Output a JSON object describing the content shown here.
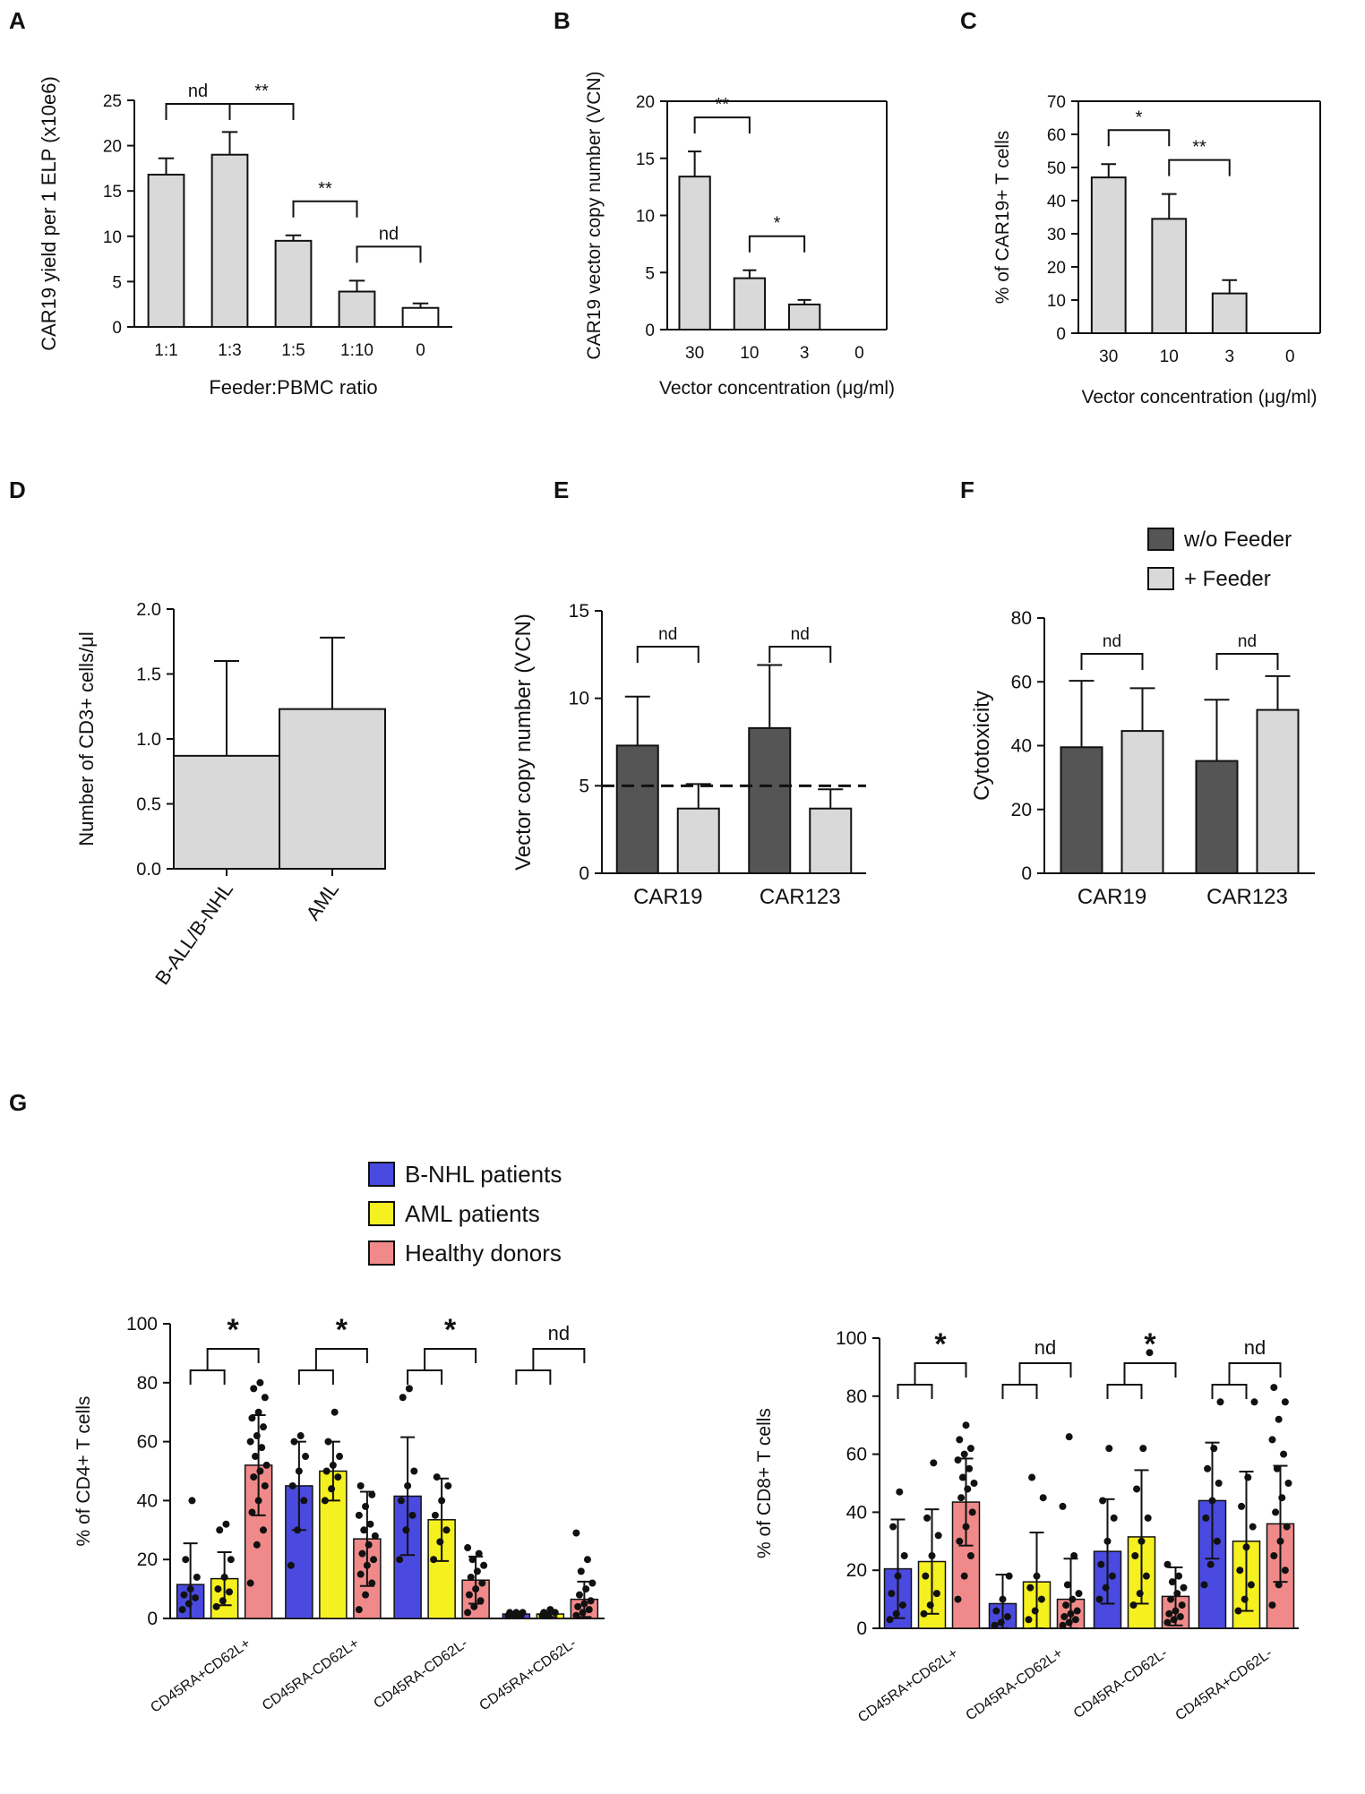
{
  "figure": {
    "panel_labels": [
      "A",
      "B",
      "C",
      "D",
      "E",
      "F",
      "G"
    ]
  },
  "colors": {
    "light_bar": "#d9d9d9",
    "dark_bar": "#555555",
    "bnhl": "#4a4ae0",
    "aml": "#f5f020",
    "healthy": "#f08a8a",
    "axis": "#111111",
    "white_bar": "#ffffff"
  },
  "chart_data": [
    {
      "id": "A",
      "type": "bar",
      "title": "",
      "xlabel": "Feeder:PBMC ratio",
      "ylabel": "CAR19 yield per 1 ELP (x10e6)",
      "ylim": [
        0,
        25
      ],
      "yticks": [
        0,
        5,
        10,
        15,
        20,
        25
      ],
      "categories": [
        "1:1",
        "1:3",
        "1:5",
        "1:10",
        "0"
      ],
      "values": [
        16.8,
        19.0,
        9.5,
        3.9,
        2.1
      ],
      "errors": [
        1.8,
        2.5,
        0.6,
        1.2,
        0.5
      ],
      "bar_colors": [
        "light",
        "light",
        "light",
        "light",
        "white"
      ],
      "significance": [
        {
          "from": 0,
          "to": 1,
          "label": "nd"
        },
        {
          "from": 1,
          "to": 2,
          "label": "**"
        },
        {
          "from": 2,
          "to": 3,
          "label": "**"
        },
        {
          "from": 3,
          "to": 4,
          "label": "nd"
        }
      ]
    },
    {
      "id": "B",
      "type": "bar",
      "title": "",
      "xlabel": "Vector concentration (μg/ml)",
      "ylabel": "CAR19 vector copy number (VCN)",
      "ylim": [
        0,
        20
      ],
      "yticks": [
        0,
        5,
        10,
        15,
        20
      ],
      "categories": [
        "30",
        "10",
        "3",
        "0"
      ],
      "values": [
        13.4,
        4.5,
        2.2,
        0
      ],
      "errors": [
        2.2,
        0.7,
        0.4,
        0
      ],
      "significance": [
        {
          "from": 0,
          "to": 1,
          "label": "**"
        },
        {
          "from": 1,
          "to": 2,
          "label": "*"
        }
      ]
    },
    {
      "id": "C",
      "type": "bar",
      "title": "",
      "xlabel": "Vector concentration (μg/ml)",
      "ylabel": "% of CAR19+ T cells",
      "ylim": [
        0,
        70
      ],
      "yticks": [
        0,
        10,
        20,
        30,
        40,
        50,
        60,
        70
      ],
      "categories": [
        "30",
        "10",
        "3",
        "0"
      ],
      "values": [
        47,
        34.5,
        12,
        0
      ],
      "errors": [
        4,
        7.5,
        4,
        0
      ],
      "significance": [
        {
          "from": 0,
          "to": 1,
          "label": "*"
        },
        {
          "from": 1,
          "to": 2,
          "label": "**"
        }
      ]
    },
    {
      "id": "D",
      "type": "bar",
      "title": "",
      "xlabel": "",
      "ylabel": "Number of CD3+ cells/μl",
      "ylim": [
        0,
        2.0
      ],
      "yticks": [
        "0.0",
        "0.5",
        "1.0",
        "1.5",
        "2.0"
      ],
      "categories": [
        "B-ALL/B-NHL",
        "AML"
      ],
      "values": [
        0.87,
        1.23
      ],
      "errors": [
        0.73,
        0.55
      ]
    },
    {
      "id": "E",
      "type": "bar",
      "title": "",
      "xlabel": "",
      "ylabel": "Vector copy number (VCN)",
      "ylim": [
        0,
        15
      ],
      "yticks": [
        0,
        5,
        10,
        15
      ],
      "categories": [
        "CAR19",
        "CAR123"
      ],
      "series": [
        {
          "name": "w/o Feeder",
          "values": [
            7.3,
            8.3
          ],
          "errors": [
            2.8,
            3.6
          ]
        },
        {
          "name": "+ Feeder",
          "values": [
            3.7,
            3.7
          ],
          "errors": [
            1.4,
            1.1
          ]
        }
      ],
      "reference_line": 5,
      "significance": [
        {
          "group": 0,
          "label": "nd"
        },
        {
          "group": 1,
          "label": "nd"
        }
      ]
    },
    {
      "id": "F",
      "type": "bar",
      "title": "",
      "xlabel": "",
      "ylabel": "Cytotoxicity",
      "ylim": [
        0,
        80
      ],
      "yticks": [
        0,
        20,
        40,
        60,
        80
      ],
      "categories": [
        "CAR19",
        "CAR123"
      ],
      "series": [
        {
          "name": "w/o Feeder",
          "values": [
            39.5,
            35.2
          ],
          "errors": [
            20.8,
            19.2
          ]
        },
        {
          "name": "+ Feeder",
          "values": [
            44.6,
            51.2
          ],
          "errors": [
            13.4,
            10.6
          ]
        }
      ],
      "legend": [
        "w/o Feeder",
        "+ Feeder"
      ],
      "significance": [
        {
          "group": 0,
          "label": "nd"
        },
        {
          "group": 1,
          "label": "nd"
        }
      ]
    },
    {
      "id": "G1",
      "type": "bar",
      "title": "",
      "xlabel": "",
      "ylabel": "% of CD4+ T cells",
      "ylim": [
        0,
        100
      ],
      "yticks": [
        0,
        20,
        40,
        60,
        80,
        100
      ],
      "categories": [
        "CD45RA+CD62L+",
        "CD45RA-CD62L+",
        "CD45RA-CD62L-",
        "CD45RA+CD62L-"
      ],
      "series": [
        {
          "name": "B-NHL patients",
          "values": [
            11.5,
            45,
            41.5,
            1.5
          ],
          "errors": [
            14,
            15,
            20,
            0.5
          ],
          "points": [
            [
              3,
              5,
              7,
              8,
              10,
              14,
              20,
              40
            ],
            [
              18,
              30,
              40,
              45,
              50,
              55,
              60,
              62
            ],
            [
              20,
              30,
              35,
              40,
              45,
              50,
              75,
              78
            ],
            [
              1,
              1,
              1,
              2,
              2,
              2
            ]
          ]
        },
        {
          "name": "AML patients",
          "values": [
            13.5,
            50,
            33.5,
            1.5
          ],
          "errors": [
            9,
            10,
            14,
            1
          ],
          "points": [
            [
              4,
              6,
              9,
              10,
              14,
              20,
              30,
              32
            ],
            [
              40,
              44,
              48,
              50,
              52,
              55,
              60,
              70
            ],
            [
              20,
              26,
              30,
              35,
              40,
              45,
              48
            ],
            [
              1,
              1,
              2,
              2,
              3
            ]
          ]
        },
        {
          "name": "Healthy donors",
          "values": [
            52,
            27,
            13,
            6.5
          ],
          "errors": [
            17,
            16,
            8,
            6
          ],
          "points": [
            [
              12,
              25,
              30,
              36,
              40,
              45,
              48,
              50,
              52,
              55,
              58,
              60,
              62,
              65,
              68,
              70,
              75,
              78,
              80
            ],
            [
              3,
              8,
              12,
              15,
              18,
              20,
              22,
              25,
              28,
              30,
              32,
              35,
              38,
              42,
              45
            ],
            [
              2,
              4,
              6,
              8,
              10,
              12,
              14,
              16,
              18,
              20,
              22,
              24
            ],
            [
              1,
              2,
              3,
              4,
              5,
              6,
              8,
              10,
              12,
              16,
              20,
              29
            ]
          ]
        }
      ],
      "significance": [
        {
          "group": 0,
          "label": "*"
        },
        {
          "group": 1,
          "label": "*"
        },
        {
          "group": 2,
          "label": "*"
        },
        {
          "group": 3,
          "label": "nd"
        }
      ]
    },
    {
      "id": "G2",
      "type": "bar",
      "title": "",
      "xlabel": "",
      "ylabel": "% of CD8+ T cells",
      "ylim": [
        0,
        100
      ],
      "yticks": [
        0,
        20,
        40,
        60,
        80,
        100
      ],
      "categories": [
        "CD45RA+CD62L+",
        "CD45RA-CD62L+",
        "CD45RA-CD62L-",
        "CD45RA+CD62L-"
      ],
      "series": [
        {
          "name": "B-NHL patients",
          "values": [
            20.5,
            8.5,
            26.5,
            44
          ],
          "errors": [
            17,
            10,
            18,
            20
          ],
          "points": [
            [
              3,
              5,
              8,
              12,
              18,
              25,
              35,
              47
            ],
            [
              1,
              2,
              4,
              6,
              10,
              18
            ],
            [
              10,
              14,
              18,
              22,
              30,
              38,
              44,
              62
            ],
            [
              15,
              22,
              30,
              38,
              44,
              50,
              55,
              62,
              78
            ]
          ]
        },
        {
          "name": "AML patients",
          "values": [
            23,
            16,
            31.5,
            30
          ],
          "errors": [
            18,
            17,
            23,
            24
          ],
          "points": [
            [
              5,
              8,
              12,
              18,
              25,
              32,
              38,
              57
            ],
            [
              3,
              6,
              10,
              14,
              18,
              45,
              52
            ],
            [
              8,
              12,
              18,
              25,
              30,
              38,
              48,
              62,
              95
            ],
            [
              6,
              10,
              15,
              20,
              28,
              35,
              42,
              52,
              78
            ]
          ]
        },
        {
          "name": "Healthy donors",
          "values": [
            43.5,
            10,
            11,
            36
          ],
          "errors": [
            15,
            14,
            10,
            20
          ],
          "points": [
            [
              10,
              18,
              25,
              30,
              35,
              40,
              45,
              48,
              50,
              52,
              55,
              58,
              60,
              62,
              65,
              70
            ],
            [
              1,
              2,
              3,
              4,
              5,
              6,
              8,
              10,
              12,
              15,
              25,
              42,
              66
            ],
            [
              2,
              3,
              4,
              5,
              6,
              8,
              10,
              12,
              14,
              16,
              18,
              22
            ],
            [
              8,
              15,
              20,
              25,
              30,
              35,
              40,
              45,
              50,
              55,
              60,
              65,
              72,
              78,
              83
            ]
          ]
        }
      ],
      "significance": [
        {
          "group": 0,
          "label": "*"
        },
        {
          "group": 1,
          "label": "nd"
        },
        {
          "group": 2,
          "label": "*"
        },
        {
          "group": 3,
          "label": "nd"
        }
      ]
    }
  ],
  "legend_G": [
    "B-NHL patients",
    "AML patients",
    "Healthy donors"
  ]
}
